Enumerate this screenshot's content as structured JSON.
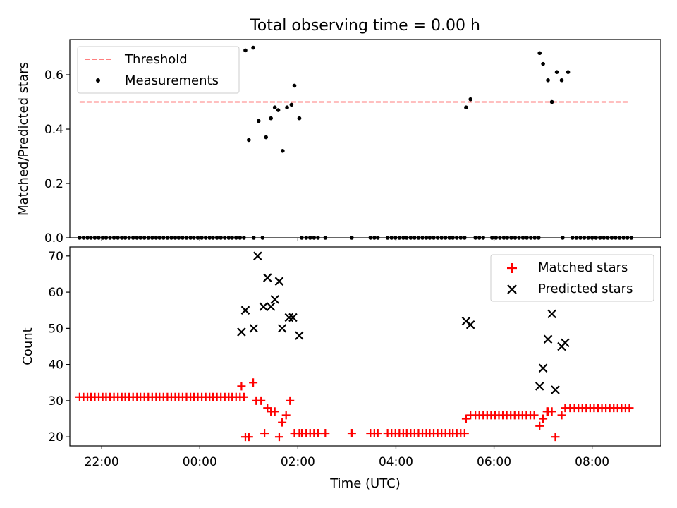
{
  "figure": {
    "title": "Total observing time = 0.00 h",
    "xlabel": "Time (UTC)"
  },
  "chart_data": [
    {
      "type": "scatter",
      "ylabel": "Matched/Predicted stars",
      "ylim": [
        0,
        0.73
      ],
      "yticks": [
        0.0,
        0.2,
        0.4,
        0.6
      ],
      "ytick_labels": [
        "0.0",
        "0.2",
        "0.4",
        "0.6"
      ],
      "xlim_hours": [
        21.35,
        33.4
      ],
      "xticks_hours": [
        22,
        24,
        26,
        28,
        30,
        32
      ],
      "xtick_labels": [
        "22:00",
        "00:00",
        "02:00",
        "04:00",
        "06:00",
        "08:00"
      ],
      "legend_position": "upper-left",
      "threshold": {
        "name": "Threshold",
        "value": 0.5,
        "x_range_hours": [
          21.55,
          32.75
        ],
        "color": "#ff7f7f",
        "style": "dashed"
      },
      "series": [
        {
          "name": "Measurements",
          "color": "#000000",
          "marker": "dot",
          "x_hours": [
            21.55,
            21.63,
            21.71,
            21.78,
            21.86,
            21.94,
            22.02,
            22.09,
            22.17,
            22.25,
            22.33,
            22.41,
            22.48,
            22.56,
            22.64,
            22.72,
            22.79,
            22.87,
            22.95,
            23.03,
            23.11,
            23.18,
            23.26,
            23.34,
            23.42,
            23.5,
            23.57,
            23.65,
            23.73,
            23.81,
            23.88,
            23.96,
            24.04,
            24.12,
            24.2,
            24.27,
            24.35,
            24.43,
            24.51,
            24.59,
            24.66,
            24.74,
            24.82,
            24.9,
            24.93,
            25.0,
            25.09,
            25.1,
            25.2,
            25.28,
            25.35,
            25.45,
            25.53,
            25.6,
            25.69,
            25.78,
            25.87,
            25.93,
            26.03,
            26.08,
            26.17,
            26.25,
            26.33,
            26.41,
            26.56,
            27.1,
            27.48,
            27.56,
            27.63,
            27.83,
            27.91,
            27.99,
            28.07,
            28.15,
            28.22,
            28.3,
            28.38,
            28.46,
            28.54,
            28.62,
            28.69,
            28.77,
            28.85,
            28.93,
            29.01,
            29.09,
            29.16,
            29.24,
            29.32,
            29.4,
            29.43,
            29.52,
            29.62,
            29.7,
            29.78,
            29.96,
            30.04,
            30.12,
            30.2,
            30.27,
            30.35,
            30.43,
            30.51,
            30.59,
            30.67,
            30.75,
            30.83,
            30.91,
            30.93,
            31.0,
            31.1,
            31.18,
            31.28,
            31.38,
            31.4,
            31.51,
            31.6,
            31.68,
            31.76,
            31.84,
            31.92,
            32.0,
            32.08,
            32.16,
            32.24,
            32.32,
            32.4,
            32.48,
            32.56,
            32.64,
            32.72,
            32.8
          ],
          "y": [
            0,
            0,
            0,
            0,
            0,
            0,
            0,
            0,
            0,
            0,
            0,
            0,
            0,
            0,
            0,
            0,
            0,
            0,
            0,
            0,
            0,
            0,
            0,
            0,
            0,
            0,
            0,
            0,
            0,
            0,
            0,
            0,
            0,
            0,
            0,
            0,
            0,
            0,
            0,
            0,
            0,
            0,
            0,
            0,
            0.69,
            0.36,
            0.7,
            0,
            0.43,
            0,
            0.37,
            0.44,
            0.48,
            0.47,
            0.32,
            0.48,
            0.49,
            0.56,
            0.44,
            0,
            0,
            0,
            0,
            0,
            0,
            0,
            0,
            0,
            0,
            0,
            0,
            0,
            0,
            0,
            0,
            0,
            0,
            0,
            0,
            0,
            0,
            0,
            0,
            0,
            0,
            0,
            0,
            0,
            0,
            0,
            0.48,
            0.51,
            0,
            0,
            0,
            0,
            0,
            0,
            0,
            0,
            0,
            0,
            0,
            0,
            0,
            0,
            0,
            0,
            0.68,
            0.64,
            0.58,
            0.5,
            0.61,
            0.58,
            0,
            0.61,
            0,
            0,
            0,
            0,
            0,
            0,
            0,
            0,
            0,
            0,
            0,
            0,
            0,
            0,
            0,
            0
          ]
        }
      ]
    },
    {
      "type": "scatter",
      "ylabel": "Count",
      "ylim": [
        17.5,
        72.5
      ],
      "yticks": [
        20,
        30,
        40,
        50,
        60,
        70
      ],
      "ytick_labels": [
        "20",
        "30",
        "40",
        "50",
        "60",
        "70"
      ],
      "xlim_hours": [
        21.35,
        33.4
      ],
      "xticks_hours": [
        22,
        24,
        26,
        28,
        30,
        32
      ],
      "xtick_labels": [
        "22:00",
        "00:00",
        "02:00",
        "04:00",
        "06:00",
        "08:00"
      ],
      "legend_position": "upper-right",
      "series": [
        {
          "name": "Matched stars",
          "color": "#ff0000",
          "marker": "plus",
          "x_hours": [
            21.55,
            21.63,
            21.71,
            21.78,
            21.86,
            21.94,
            22.02,
            22.09,
            22.17,
            22.25,
            22.33,
            22.41,
            22.48,
            22.56,
            22.64,
            22.72,
            22.79,
            22.87,
            22.95,
            23.03,
            23.11,
            23.18,
            23.26,
            23.34,
            23.42,
            23.5,
            23.57,
            23.65,
            23.73,
            23.81,
            23.88,
            23.96,
            24.04,
            24.12,
            24.2,
            24.27,
            24.35,
            24.43,
            24.51,
            24.59,
            24.66,
            24.74,
            24.82,
            24.9,
            24.85,
            24.93,
            25.0,
            25.09,
            25.15,
            25.25,
            25.32,
            25.38,
            25.45,
            25.53,
            25.62,
            25.68,
            25.76,
            25.84,
            25.93,
            26.03,
            26.08,
            26.17,
            26.25,
            26.33,
            26.41,
            26.56,
            27.1,
            27.48,
            27.56,
            27.63,
            27.83,
            27.91,
            27.99,
            28.07,
            28.15,
            28.22,
            28.3,
            28.38,
            28.46,
            28.54,
            28.62,
            28.69,
            28.77,
            28.85,
            28.93,
            29.01,
            29.09,
            29.16,
            29.24,
            29.32,
            29.4,
            29.43,
            29.52,
            29.62,
            29.7,
            29.78,
            29.86,
            29.94,
            30.02,
            30.1,
            30.18,
            30.26,
            30.34,
            30.42,
            30.5,
            30.58,
            30.66,
            30.74,
            30.82,
            30.93,
            31.0,
            31.08,
            31.1,
            31.18,
            31.25,
            31.38,
            31.45,
            31.55,
            31.64,
            31.72,
            31.8,
            31.88,
            31.96,
            32.04,
            32.12,
            32.2,
            32.28,
            32.36,
            32.44,
            32.52,
            32.6,
            32.68,
            32.76
          ],
          "y": [
            31,
            31,
            31,
            31,
            31,
            31,
            31,
            31,
            31,
            31,
            31,
            31,
            31,
            31,
            31,
            31,
            31,
            31,
            31,
            31,
            31,
            31,
            31,
            31,
            31,
            31,
            31,
            31,
            31,
            31,
            31,
            31,
            31,
            31,
            31,
            31,
            31,
            31,
            31,
            31,
            31,
            31,
            31,
            31,
            34,
            20,
            20,
            35,
            30,
            30,
            21,
            28,
            27,
            27,
            20,
            24,
            26,
            30,
            21,
            21,
            21,
            21,
            21,
            21,
            21,
            21,
            21,
            21,
            21,
            21,
            21,
            21,
            21,
            21,
            21,
            21,
            21,
            21,
            21,
            21,
            21,
            21,
            21,
            21,
            21,
            21,
            21,
            21,
            21,
            21,
            21,
            25,
            26,
            26,
            26,
            26,
            26,
            26,
            26,
            26,
            26,
            26,
            26,
            26,
            26,
            26,
            26,
            26,
            26,
            23,
            25,
            27,
            27,
            27,
            20,
            26,
            28,
            28,
            28,
            28,
            28,
            28,
            28,
            28,
            28,
            28,
            28,
            28,
            28,
            28,
            28,
            28,
            28
          ]
        },
        {
          "name": "Predicted stars",
          "color": "#000000",
          "marker": "x",
          "x_hours": [
            24.85,
            24.93,
            25.1,
            25.18,
            25.3,
            25.38,
            25.45,
            25.53,
            25.62,
            25.68,
            25.82,
            25.9,
            26.03,
            29.43,
            29.52,
            30.93,
            31.0,
            31.1,
            31.18,
            31.25,
            31.38,
            31.45
          ],
          "y": [
            49,
            55,
            50,
            70,
            56,
            64,
            56,
            58,
            63,
            50,
            53,
            53,
            48,
            52,
            51,
            34,
            39,
            47,
            54,
            33,
            45,
            46
          ]
        }
      ]
    }
  ]
}
